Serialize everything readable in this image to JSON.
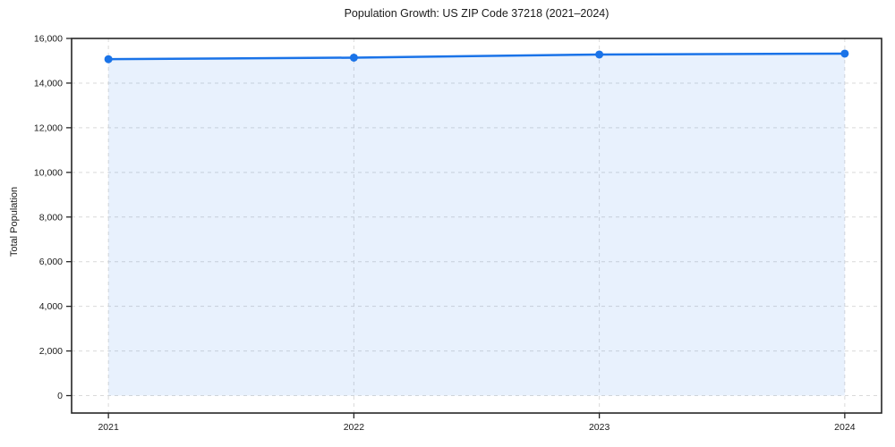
{
  "figure": {
    "background_color": "#ffffff",
    "line_color": "#1a73e8",
    "fill_color": "#1a73e8",
    "fill_opacity": 0.1,
    "grid_color": "#d9d9d9",
    "spine_color": "#262626",
    "text_color": "#1a1a1a"
  },
  "chart_data": {
    "type": "line",
    "title": "Population Growth: US ZIP Code 37218 (2021–2024)",
    "xlabel": "",
    "ylabel": "Total Population",
    "x": [
      2021,
      2022,
      2023,
      2024
    ],
    "xtick_labels": [
      "2021",
      "2022",
      "2023",
      "2024"
    ],
    "series": [
      {
        "name": "Total Population",
        "values": [
          15070,
          15140,
          15280,
          15320
        ]
      }
    ],
    "yticks": [
      0,
      2000,
      4000,
      6000,
      8000,
      10000,
      12000,
      14000,
      16000
    ],
    "ytick_labels": [
      "0",
      "2,000",
      "4,000",
      "6,000",
      "8,000",
      "10,000",
      "12,000",
      "14,000",
      "16,000"
    ],
    "xlim": [
      2020.85,
      2024.15
    ],
    "ylim": [
      -780,
      16000
    ],
    "grid": true,
    "grid_style": "dashed",
    "legend_position": "none",
    "marker": "circle",
    "area_fill": true,
    "area_baseline": 0
  }
}
